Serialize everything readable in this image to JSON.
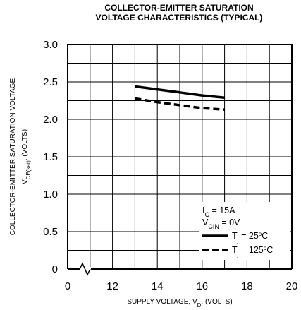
{
  "chart_data": {
    "type": "line",
    "title_line1": "COLLECTOR-EMITTER SATURATION",
    "title_line2": "VOLTAGE CHARACTERISTICS (TYPICAL)",
    "xlabel": "SUPPLY VOLTAGE, V",
    "xlabel_sub": "D",
    "xlabel_suffix": ", (VOLTS)",
    "ylabel_line1": "COLLECTOR-EMITTER SATURATION VOLTAGE",
    "ylabel_line2_prefix": "V",
    "ylabel_line2_sub": "CE(sat)",
    "ylabel_line2_suffix": ", (VOLTS)",
    "xlim": [
      10,
      20
    ],
    "ylim": [
      0,
      3.0
    ],
    "x_axis_break": true,
    "x_ticks": [
      "0",
      "12",
      "14",
      "16",
      "18",
      "20"
    ],
    "y_ticks": [
      "0",
      "0.5",
      "1.0",
      "1.5",
      "2.0",
      "2.5",
      "3.0"
    ],
    "grid": true,
    "legend_position": "bottom-right",
    "conditions": [
      {
        "main": "I",
        "sub": "C",
        "rest": " = 15A"
      },
      {
        "main": "V",
        "sub": "CIN",
        "rest": " = 0V"
      }
    ],
    "series": [
      {
        "name": "Tj = 25°C",
        "label_main": "T",
        "label_sub": "j",
        "label_rest": " = 25",
        "label_sup": "o",
        "label_end": "C",
        "style": "solid",
        "x": [
          13,
          14,
          15,
          16,
          17
        ],
        "y": [
          2.44,
          2.4,
          2.36,
          2.32,
          2.29
        ]
      },
      {
        "name": "Tj = 125°C",
        "label_main": "T",
        "label_sub": "j",
        "label_rest": " = 125",
        "label_sup": "o",
        "label_end": "C",
        "style": "dashed",
        "x": [
          13,
          14,
          15,
          16,
          17
        ],
        "y": [
          2.28,
          2.23,
          2.19,
          2.15,
          2.13
        ]
      }
    ]
  }
}
